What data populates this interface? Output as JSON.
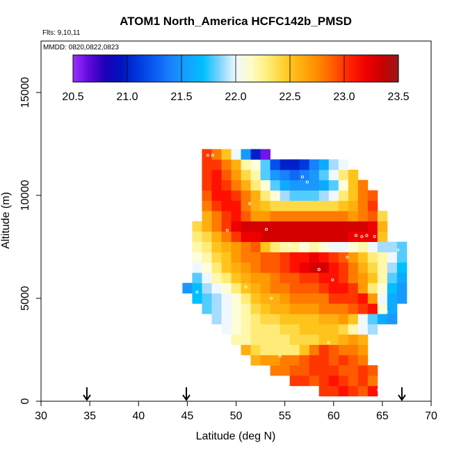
{
  "chart_data": {
    "type": "heatmap",
    "title": "ATOM1 North_America HCFC142b_PMSD",
    "annotations": [
      "Flts: 9,10,11",
      "MMDD: 0820,0822,0823"
    ],
    "xlabel": "Latitude (deg N)",
    "ylabel": "Altitude (m)",
    "xlim": [
      30,
      70
    ],
    "ylim": [
      0,
      17500
    ],
    "xticks": [
      30,
      35,
      40,
      45,
      50,
      55,
      60,
      65,
      70
    ],
    "yticks": [
      0,
      5000,
      10000,
      15000
    ],
    "colorbar": {
      "range": [
        20.5,
        23.5
      ],
      "ticks": [
        "20.5",
        "21.0",
        "21.5",
        "22.0",
        "22.5",
        "23.0",
        "23.5"
      ]
    },
    "grid": {
      "lat_min": 45.5,
      "lat_step": 1.0,
      "alt_min": 500,
      "alt_step": 500
    },
    "rows": [
      {
        "alt": 500,
        "start": 59,
        "values": [
          23.0,
          23.0,
          23.1,
          23.0,
          22.9,
          23.1
        ]
      },
      {
        "alt": 1000,
        "start": 56,
        "values": [
          23.0,
          23.0,
          22.9,
          23.0,
          23.1,
          23.0,
          22.9,
          23.0,
          22.8
        ]
      },
      {
        "alt": 1500,
        "start": 54,
        "values": [
          22.8,
          22.8,
          22.9,
          22.9,
          23.0,
          23.0,
          23.0,
          22.9,
          22.9,
          23.0,
          22.9
        ]
      },
      {
        "alt": 2000,
        "start": 52,
        "values": [
          22.6,
          22.7,
          22.7,
          22.8,
          22.8,
          22.9,
          23.0,
          23.0,
          22.9,
          23.0,
          22.9,
          22.8
        ]
      },
      {
        "alt": 2500,
        "start": 51,
        "values": [
          22.6,
          22.4,
          22.3,
          22.3,
          22.3,
          22.3,
          22.5,
          22.8,
          23.0,
          22.9,
          22.8,
          22.8,
          22.7
        ]
      },
      {
        "alt": 3000,
        "start": 50,
        "values": [
          22.2,
          22.2,
          22.3,
          22.3,
          22.3,
          22.3,
          22.4,
          22.4,
          22.4,
          22.5,
          22.5,
          22.6,
          22.7,
          22.6
        ]
      },
      {
        "alt": 3500,
        "start": 49,
        "values": [
          22.0,
          22.1,
          22.2,
          22.3,
          22.3,
          22.3,
          22.4,
          22.4,
          22.5,
          22.5,
          22.5,
          22.5,
          22.4,
          22.2,
          22.0,
          21.9
        ]
      },
      {
        "alt": 4000,
        "start": 48,
        "values": [
          21.9,
          22.0,
          22.1,
          22.2,
          22.3,
          22.4,
          22.4,
          22.5,
          22.5,
          22.5,
          22.5,
          22.6,
          22.6,
          22.7,
          22.5,
          22.0,
          21.8,
          21.6,
          21.5
        ]
      },
      {
        "alt": 4500,
        "start": 47,
        "values": [
          21.8,
          21.9,
          22.0,
          22.1,
          22.2,
          22.4,
          22.5,
          22.6,
          22.6,
          22.7,
          22.7,
          22.7,
          22.8,
          22.8,
          22.8,
          22.9,
          23.0,
          23.1,
          22.1,
          21.6
        ]
      },
      {
        "alt": 5000,
        "start": 46,
        "values": [
          21.7,
          21.8,
          21.9,
          22.0,
          22.1,
          22.3,
          22.5,
          22.6,
          22.6,
          22.7,
          22.8,
          22.8,
          22.8,
          22.8,
          23.0,
          23.0,
          23.0,
          23.1,
          22.7,
          22.0,
          21.6,
          21.5
        ]
      },
      {
        "alt": 5500,
        "start": 45,
        "values": [
          21.5,
          21.7,
          21.9,
          22.0,
          22.1,
          22.3,
          22.5,
          22.6,
          22.7,
          22.8,
          22.8,
          22.9,
          22.9,
          22.9,
          23.0,
          23.1,
          23.1,
          23.0,
          22.7,
          22.3,
          22.1,
          21.7,
          21.5
        ]
      },
      {
        "alt": 6000,
        "start": 46,
        "values": [
          21.8,
          22.0,
          22.2,
          22.3,
          22.5,
          22.6,
          22.7,
          22.7,
          22.8,
          22.9,
          22.9,
          23.0,
          23.0,
          23.1,
          23.1,
          23.0,
          22.8,
          22.7,
          22.5,
          22.2,
          21.8,
          21.6
        ]
      },
      {
        "alt": 6500,
        "start": 46,
        "values": [
          22.0,
          22.1,
          22.3,
          22.5,
          22.6,
          22.7,
          22.8,
          22.9,
          22.9,
          23.0,
          23.1,
          23.2,
          23.3,
          23.3,
          23.1,
          23.0,
          22.8,
          22.6,
          22.4,
          22.2,
          21.9,
          21.7
        ]
      },
      {
        "alt": 7000,
        "start": 46,
        "values": [
          22.1,
          22.2,
          22.4,
          22.5,
          22.7,
          22.8,
          22.8,
          22.9,
          22.9,
          23.0,
          23.1,
          23.1,
          23.2,
          23.1,
          23.0,
          22.9,
          22.7,
          22.5,
          22.3,
          22.2,
          22.0,
          21.8
        ]
      },
      {
        "alt": 7500,
        "start": 46,
        "values": [
          22.2,
          22.3,
          22.5,
          22.6,
          22.7,
          22.8,
          22.9,
          22.5,
          22.3,
          22.2,
          22.2,
          22.1,
          22.2,
          22.1,
          22.0,
          22.0,
          22.1,
          22.2,
          22.0,
          21.9,
          21.9,
          21.8
        ]
      },
      {
        "alt": 8000,
        "start": 46,
        "values": [
          22.3,
          22.4,
          22.6,
          22.8,
          23.0,
          23.2,
          23.2,
          23.3,
          23.3,
          23.3,
          23.3,
          23.3,
          23.3,
          23.3,
          23.3,
          23.3,
          23.2,
          23.2,
          23.2,
          22.5
        ]
      },
      {
        "alt": 8500,
        "start": 46,
        "values": [
          22.4,
          22.6,
          22.8,
          23.0,
          23.2,
          23.3,
          23.3,
          23.3,
          23.3,
          23.3,
          23.3,
          23.3,
          23.3,
          23.3,
          23.3,
          23.3,
          23.3,
          23.3,
          23.2,
          22.6
        ]
      },
      {
        "alt": 9000,
        "start": 47,
        "values": [
          22.6,
          22.8,
          23.0,
          23.1,
          22.9,
          22.7,
          22.7,
          22.8,
          22.8,
          22.8,
          22.8,
          22.8,
          22.8,
          22.8,
          22.8,
          22.7,
          22.8,
          22.9,
          22.4
        ]
      },
      {
        "alt": 9500,
        "start": 47,
        "values": [
          22.8,
          23.0,
          23.1,
          23.1,
          22.8,
          22.6,
          22.5,
          22.4,
          22.4,
          22.4,
          22.4,
          22.4,
          22.4,
          22.4,
          22.5,
          22.6,
          22.8,
          23.0
        ]
      },
      {
        "alt": 10000,
        "start": 47,
        "values": [
          22.9,
          23.1,
          23.1,
          23.0,
          22.8,
          22.6,
          22.3,
          22.1,
          21.9,
          21.8,
          21.8,
          21.8,
          21.9,
          22.0,
          22.3,
          22.5,
          22.8,
          22.9
        ]
      },
      {
        "alt": 10500,
        "start": 47,
        "values": [
          23.0,
          23.1,
          23.0,
          22.8,
          22.6,
          22.3,
          22.1,
          21.8,
          21.6,
          21.5,
          21.5,
          21.5,
          21.6,
          21.8,
          22.1,
          22.5,
          22.8
        ]
      },
      {
        "alt": 11000,
        "start": 47,
        "values": [
          23.0,
          23.1,
          22.9,
          22.7,
          22.4,
          22.2,
          21.8,
          21.5,
          21.4,
          21.3,
          21.4,
          21.5,
          21.8,
          22.0,
          22.3,
          22.5
        ]
      },
      {
        "alt": 11500,
        "start": 47,
        "values": [
          23.0,
          23.0,
          22.8,
          22.6,
          22.2,
          22.1,
          21.8,
          21.2,
          21.0,
          21.0,
          21.1,
          21.4,
          21.6,
          21.9,
          22.0
        ]
      },
      {
        "alt": 12000,
        "start": 47,
        "values": [
          23.0,
          22.8,
          22.5,
          22.0,
          21.5,
          21.0,
          20.6
        ]
      }
    ],
    "points": [
      [
        47.1,
        11950
      ],
      [
        47.6,
        11950
      ],
      [
        52.0,
        11650
      ],
      [
        56.8,
        10900
      ],
      [
        57.3,
        10650
      ],
      [
        51.4,
        9600
      ],
      [
        49.1,
        8300
      ],
      [
        53.1,
        8350
      ],
      [
        62.3,
        8050
      ],
      [
        62.9,
        8000
      ],
      [
        63.4,
        8050
      ],
      [
        64.2,
        8000
      ],
      [
        55.5,
        7600
      ],
      [
        66.6,
        7350
      ],
      [
        61.4,
        7000
      ],
      [
        58.5,
        6400
      ],
      [
        59.9,
        5900
      ],
      [
        51.0,
        5550
      ],
      [
        46.0,
        5300
      ],
      [
        53.6,
        5000
      ],
      [
        65.4,
        4350
      ],
      [
        66.8,
        4150
      ],
      [
        59.5,
        2850
      ],
      [
        54.5,
        2200
      ],
      [
        64.6,
        550
      ]
    ],
    "arrows": [
      34.7,
      44.9,
      67.0
    ]
  }
}
